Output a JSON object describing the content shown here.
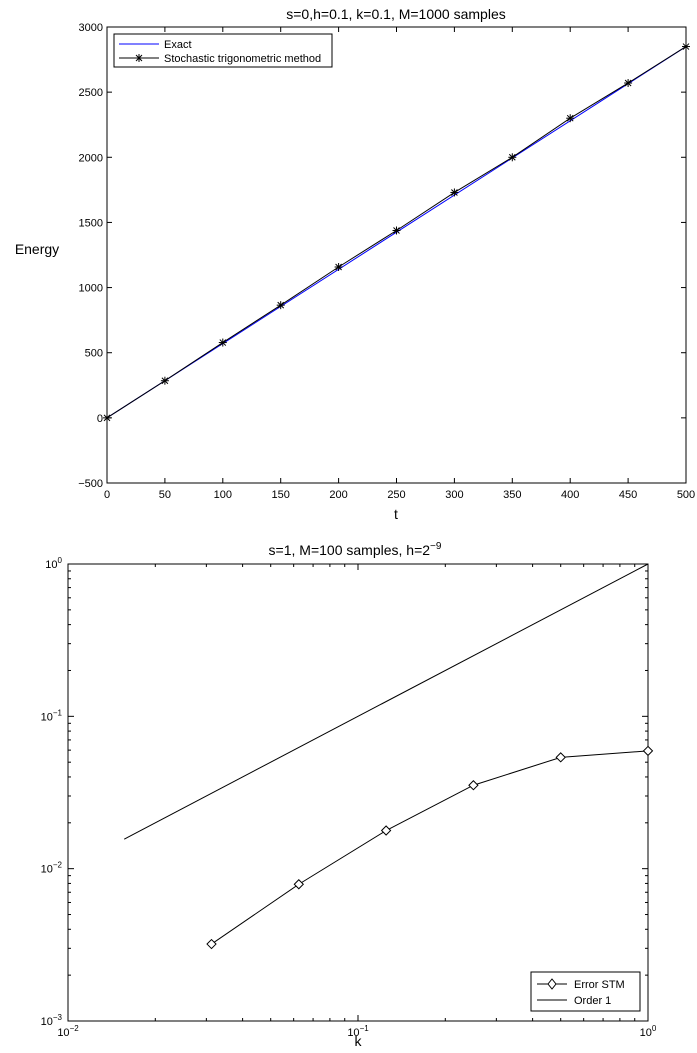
{
  "colors": {
    "exact": "#0000ff",
    "method": "#000000",
    "frame": "#000000",
    "background": "#ffffff"
  },
  "chart_data": [
    {
      "type": "line",
      "title": "s=0,h=0.1, k=0.1, M=1000 samples",
      "xlabel": "t",
      "ylabel": "Energy",
      "xlim": [
        0,
        500
      ],
      "ylim": [
        -500,
        3000
      ],
      "xticks": [
        0,
        50,
        100,
        150,
        200,
        250,
        300,
        350,
        400,
        450,
        500
      ],
      "yticks": [
        -500,
        0,
        500,
        1000,
        1500,
        2000,
        2500,
        3000
      ],
      "xtick_labels": [
        "0",
        "50",
        "100",
        "150",
        "200",
        "250",
        "300",
        "350",
        "400",
        "450",
        "500"
      ],
      "ytick_labels": [
        "−500",
        "0",
        "500",
        "1000",
        "1500",
        "2000",
        "2500",
        "3000"
      ],
      "grid": false,
      "legend_position": "top-left",
      "series": [
        {
          "name": "Exact",
          "marker": "none",
          "color": "#0000ff",
          "x": [
            0,
            500
          ],
          "y": [
            0,
            2850
          ]
        },
        {
          "name": "Stochastic trigonometric method",
          "marker": "asterisk",
          "color": "#000000",
          "x": [
            0,
            50,
            100,
            150,
            200,
            250,
            300,
            350,
            400,
            450,
            500
          ],
          "y": [
            0,
            285,
            578,
            865,
            1158,
            1438,
            1730,
            2000,
            2300,
            2570,
            2850
          ]
        }
      ]
    },
    {
      "type": "line",
      "title": "s=1, M=100 samples, h=2",
      "title_exponent": "−9",
      "xlabel": "k",
      "ylabel": "",
      "xscale": "log",
      "yscale": "log",
      "xlim": [
        0.01,
        1
      ],
      "ylim": [
        0.001,
        1
      ],
      "xticks": [
        0.01,
        0.1,
        1
      ],
      "yticks": [
        0.001,
        0.01,
        0.1,
        1
      ],
      "xtick_labels": [
        {
          "base": "10",
          "exp": "−2"
        },
        {
          "base": "10",
          "exp": "−1"
        },
        {
          "base": "10",
          "exp": "0"
        }
      ],
      "ytick_labels": [
        {
          "base": "10",
          "exp": "−3"
        },
        {
          "base": "10",
          "exp": "−2"
        },
        {
          "base": "10",
          "exp": "−1"
        },
        {
          "base": "10",
          "exp": "0"
        }
      ],
      "grid": false,
      "legend_position": "bottom-right",
      "series": [
        {
          "name": "Error STM",
          "marker": "diamond",
          "color": "#000000",
          "x": [
            0.03125,
            0.0625,
            0.125,
            0.25,
            0.5,
            1
          ],
          "y": [
            0.0032,
            0.0079,
            0.0178,
            0.0353,
            0.0538,
            0.0593
          ]
        },
        {
          "name": "Order 1",
          "marker": "none",
          "color": "#000000",
          "x": [
            0.015625,
            1
          ],
          "y": [
            0.015625,
            1
          ]
        }
      ]
    }
  ]
}
